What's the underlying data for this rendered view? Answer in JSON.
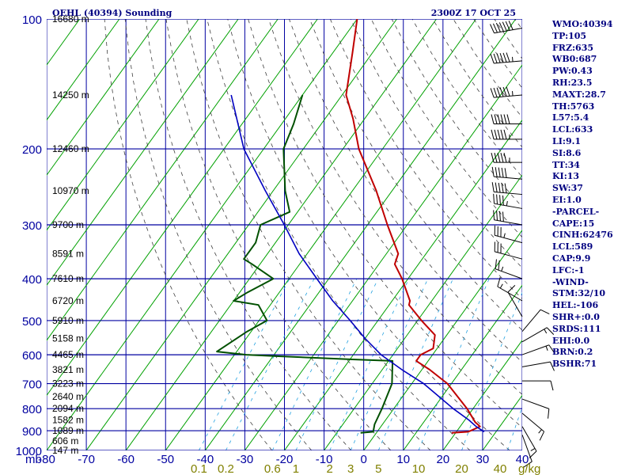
{
  "header": {
    "title": "OEHL (40394) Sounding",
    "time": "2300Z 17 OCT 25"
  },
  "stats": [
    "WMO:40394",
    "TP:105",
    "FRZ:635",
    "WB0:687",
    "PW:0.43",
    "RH:23.5",
    "MAXT:28.7",
    "TH:5763",
    "L57:5.4",
    "LCL:633",
    "LI:9.1",
    "SI:8.6",
    "TT:34",
    "KI:13",
    "SW:37",
    "EI:1.0",
    "-PARCEL-",
    "CAPE:15",
    "CINH:62476",
    "LCL:589",
    "CAP:9.9",
    "LFC:-1",
    "-WIND-",
    "STM:32/10",
    "HEL:-106",
    "SHR+:0.0",
    "SRDS:111",
    "EHI:0.0",
    "BRN:0.2",
    "BSHR:71"
  ],
  "colors": {
    "frame": "#0000a0",
    "isotherm": "#00a000",
    "dry_adiabat": "#404040",
    "mixing_ratio": "#20a0e0",
    "temperature": "#c00000",
    "dewpoint": "#005000",
    "parcel": "#0000c0",
    "stats_text": "#000080",
    "mixing_label": "#808000",
    "height_label": "#000000"
  },
  "chart_data": {
    "type": "line",
    "subtype": "skew-t log-p",
    "x_unit_label": "mb",
    "x_tick_labels": [
      "-80",
      "-70",
      "-60",
      "-50",
      "-40",
      "-30",
      "-20",
      "-10",
      "0",
      "10",
      "20",
      "30",
      "40"
    ],
    "x_ticks": [
      -80,
      -70,
      -60,
      -50,
      -40,
      -30,
      -20,
      -10,
      0,
      10,
      20,
      30,
      40
    ],
    "pressure_levels": [
      100,
      200,
      300,
      400,
      500,
      600,
      700,
      800,
      900,
      1000
    ],
    "pressure_tick_labels": [
      "100",
      "200",
      "300",
      "400",
      "500",
      "600",
      "700",
      "800",
      "900",
      "1000"
    ],
    "heights": [
      {
        "label": "16680 m",
        "p": 100
      },
      {
        "label": "14250 m",
        "p": 150
      },
      {
        "label": "12460 m",
        "p": 200
      },
      {
        "label": "10970 m",
        "p": 250
      },
      {
        "label": "9700 m",
        "p": 300
      },
      {
        "label": "8591 m",
        "p": 350
      },
      {
        "label": "7610 m",
        "p": 400
      },
      {
        "label": "6720 m",
        "p": 450
      },
      {
        "label": "5910 m",
        "p": 500
      },
      {
        "label": "5158 m",
        "p": 550
      },
      {
        "label": "4465 m",
        "p": 600
      },
      {
        "label": "3821 m",
        "p": 650
      },
      {
        "label": "3223 m",
        "p": 700
      },
      {
        "label": "2640 m",
        "p": 750
      },
      {
        "label": "2094 m",
        "p": 800
      },
      {
        "label": "1582 m",
        "p": 850
      },
      {
        "label": "1089 m",
        "p": 900
      },
      {
        "label": "606 m",
        "p": 950
      },
      {
        "label": "147 m",
        "p": 1000
      }
    ],
    "mixing_ratio_label_unit": "g/kg",
    "mixing_ratio_labels": [
      "0.1",
      "0.2",
      "0.6",
      "1.0",
      "2.0",
      "3.0",
      "5.0",
      "10.0",
      "20.0",
      "40"
    ],
    "mixing_ratios": [
      0.1,
      0.2,
      0.6,
      1.0,
      2.0,
      3.0,
      5.0,
      10.0,
      20.0,
      40
    ],
    "series": [
      {
        "key": "temperature",
        "points": [
          {
            "p": 100,
            "t": -80
          },
          {
            "p": 120,
            "t": -75
          },
          {
            "p": 150,
            "t": -69
          },
          {
            "p": 170,
            "t": -63
          },
          {
            "p": 200,
            "t": -56
          },
          {
            "p": 250,
            "t": -44
          },
          {
            "p": 300,
            "t": -35
          },
          {
            "p": 350,
            "t": -27
          },
          {
            "p": 370,
            "t": -26
          },
          {
            "p": 400,
            "t": -21.5
          },
          {
            "p": 450,
            "t": -15.5
          },
          {
            "p": 460,
            "t": -15
          },
          {
            "p": 500,
            "t": -9
          },
          {
            "p": 540,
            "t": -3
          },
          {
            "p": 580,
            "t": -1
          },
          {
            "p": 600,
            "t": -3
          },
          {
            "p": 620,
            "t": -3
          },
          {
            "p": 650,
            "t": 2
          },
          {
            "p": 700,
            "t": 9
          },
          {
            "p": 800,
            "t": 18.5
          },
          {
            "p": 860,
            "t": 23
          },
          {
            "p": 880,
            "t": 25
          },
          {
            "p": 905,
            "t": 23
          },
          {
            "p": 910,
            "t": 19
          }
        ]
      },
      {
        "key": "dewpoint",
        "points": [
          {
            "p": 150,
            "t": -80
          },
          {
            "p": 175,
            "t": -77
          },
          {
            "p": 200,
            "t": -75
          },
          {
            "p": 250,
            "t": -67
          },
          {
            "p": 280,
            "t": -62
          },
          {
            "p": 300,
            "t": -67
          },
          {
            "p": 330,
            "t": -65
          },
          {
            "p": 360,
            "t": -65
          },
          {
            "p": 370,
            "t": -62
          },
          {
            "p": 400,
            "t": -54
          },
          {
            "p": 430,
            "t": -58
          },
          {
            "p": 450,
            "t": -60
          },
          {
            "p": 460,
            "t": -53
          },
          {
            "p": 500,
            "t": -48
          },
          {
            "p": 530,
            "t": -51
          },
          {
            "p": 590,
            "t": -55
          },
          {
            "p": 600,
            "t": -47
          },
          {
            "p": 605,
            "t": -38
          },
          {
            "p": 615,
            "t": -20
          },
          {
            "p": 620,
            "t": -9
          },
          {
            "p": 700,
            "t": -5
          },
          {
            "p": 800,
            "t": -3
          },
          {
            "p": 870,
            "t": -2
          },
          {
            "p": 905,
            "t": -1
          },
          {
            "p": 910,
            "t": -4
          }
        ]
      },
      {
        "key": "parcel",
        "points": [
          {
            "p": 150,
            "t": -98
          },
          {
            "p": 200,
            "t": -85
          },
          {
            "p": 250,
            "t": -72
          },
          {
            "p": 300,
            "t": -61
          },
          {
            "p": 350,
            "t": -52
          },
          {
            "p": 400,
            "t": -43
          },
          {
            "p": 450,
            "t": -35
          },
          {
            "p": 500,
            "t": -27
          },
          {
            "p": 550,
            "t": -20
          },
          {
            "p": 600,
            "t": -13
          },
          {
            "p": 650,
            "t": -5
          },
          {
            "p": 700,
            "t": 3
          },
          {
            "p": 800,
            "t": 15
          },
          {
            "p": 850,
            "t": 21
          },
          {
            "p": 880,
            "t": 24
          },
          {
            "p": 905,
            "t": 27
          }
        ]
      }
    ],
    "wind_barbs": [
      {
        "p": 105,
        "dir": 260,
        "kt": 70
      },
      {
        "p": 125,
        "dir": 265,
        "kt": 65
      },
      {
        "p": 150,
        "dir": 265,
        "kt": 65
      },
      {
        "p": 175,
        "dir": 270,
        "kt": 60
      },
      {
        "p": 190,
        "dir": 270,
        "kt": 55
      },
      {
        "p": 215,
        "dir": 270,
        "kt": 55
      },
      {
        "p": 235,
        "dir": 275,
        "kt": 50
      },
      {
        "p": 255,
        "dir": 275,
        "kt": 50
      },
      {
        "p": 275,
        "dir": 280,
        "kt": 45
      },
      {
        "p": 300,
        "dir": 280,
        "kt": 40
      },
      {
        "p": 330,
        "dir": 285,
        "kt": 35
      },
      {
        "p": 360,
        "dir": 285,
        "kt": 30
      },
      {
        "p": 400,
        "dir": 290,
        "kt": 25
      },
      {
        "p": 450,
        "dir": 300,
        "kt": 15
      },
      {
        "p": 490,
        "dir": 330,
        "kt": 10
      },
      {
        "p": 530,
        "dir": 40,
        "kt": 10
      },
      {
        "p": 560,
        "dir": 60,
        "kt": 15
      },
      {
        "p": 600,
        "dir": 70,
        "kt": 15
      },
      {
        "p": 640,
        "dir": 80,
        "kt": 10
      },
      {
        "p": 690,
        "dir": 90,
        "kt": 10
      },
      {
        "p": 760,
        "dir": 110,
        "kt": 10
      },
      {
        "p": 820,
        "dir": 130,
        "kt": 15
      },
      {
        "p": 880,
        "dir": 150,
        "kt": 15
      },
      {
        "p": 920,
        "dir": 160,
        "kt": 10
      }
    ]
  }
}
